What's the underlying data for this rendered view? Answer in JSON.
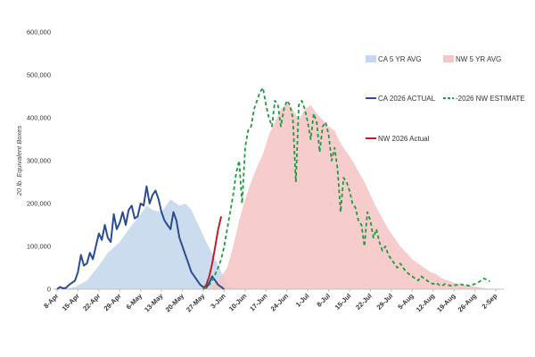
{
  "chart_data": {
    "type": "area",
    "title": "",
    "xlabel": "",
    "ylabel": "20 lb. Equivalent Boxes",
    "ylim": [
      0,
      600000
    ],
    "xlim_days": [
      0,
      147
    ],
    "y_ticks": [
      0,
      100000,
      200000,
      300000,
      400000,
      500000,
      600000
    ],
    "y_tick_labels": [
      "0",
      "100,000",
      "200,000",
      "300,000",
      "400,000",
      "500,000",
      "600,000"
    ],
    "x_tick_labels": [
      "8-Apr",
      "15-Apr",
      "22-Apr",
      "29-Apr",
      "6-May",
      "13-May",
      "20-May",
      "27-May",
      "3-Jun",
      "10-Jun",
      "17-Jun",
      "24-Jun",
      "1-Jul",
      "8-Jul",
      "15-Jul",
      "22-Jul",
      "29-Jul",
      "5-Aug",
      "12-Aug",
      "19-Aug",
      "26-Aug",
      "2-Sep"
    ],
    "x_tick_days": [
      0,
      7,
      14,
      21,
      28,
      35,
      42,
      49,
      56,
      63,
      70,
      77,
      84,
      91,
      98,
      105,
      112,
      119,
      126,
      133,
      140,
      147
    ],
    "x_units_note": "",
    "grid": false,
    "legend_position": "top-right",
    "series": [
      {
        "name": "CA 5 YR AVG",
        "kind": "area",
        "color": "#c5d8ec",
        "x": [
          2,
          6,
          10,
          14,
          17,
          21,
          24,
          28,
          30,
          32,
          35,
          38,
          41,
          43,
          45,
          48,
          50,
          53,
          55,
          57,
          59,
          62
        ],
        "y": [
          0,
          5000,
          20000,
          55000,
          85000,
          110000,
          140000,
          175000,
          195000,
          185000,
          180000,
          210000,
          195000,
          200000,
          185000,
          140000,
          110000,
          70000,
          40000,
          15000,
          5000,
          0
        ]
      },
      {
        "name": "NW 5 YR AVG",
        "kind": "area",
        "color": "#f5c6c6",
        "x": [
          50,
          54,
          57,
          59,
          61,
          63,
          65,
          67,
          69,
          71,
          73,
          75,
          77,
          79,
          81,
          83,
          85,
          87,
          89,
          91,
          93,
          95,
          97,
          99,
          101,
          103,
          105,
          107,
          109,
          111,
          113,
          115,
          117,
          119,
          121,
          123,
          125,
          127,
          129,
          131,
          133,
          135,
          137,
          139,
          141,
          143,
          145
        ],
        "y": [
          0,
          20000,
          50000,
          100000,
          160000,
          210000,
          250000,
          285000,
          315000,
          360000,
          390000,
          420000,
          435000,
          420000,
          395000,
          420000,
          430000,
          410000,
          395000,
          380000,
          370000,
          340000,
          320000,
          300000,
          275000,
          250000,
          220000,
          190000,
          165000,
          140000,
          120000,
          100000,
          85000,
          70000,
          60000,
          50000,
          40000,
          35000,
          25000,
          20000,
          15000,
          12000,
          10000,
          8000,
          5000,
          3000,
          0
        ]
      },
      {
        "name": "CA 2026  ACTUAL",
        "kind": "line",
        "color": "#2a4d8f",
        "dash": "",
        "x": [
          0,
          1,
          2,
          3,
          4,
          5,
          6,
          7,
          8,
          9,
          10,
          11,
          12,
          13,
          14,
          15,
          16,
          17,
          18,
          19,
          20,
          21,
          22,
          23,
          24,
          25,
          26,
          27,
          28,
          29,
          30,
          31,
          32,
          33,
          34,
          35,
          36,
          37,
          38,
          39,
          40,
          41,
          42,
          43,
          44,
          45,
          46,
          47,
          48,
          49,
          50,
          51,
          52,
          53,
          54,
          55,
          56
        ],
        "y": [
          0,
          5000,
          2000,
          3000,
          10000,
          15000,
          20000,
          40000,
          80000,
          55000,
          60000,
          85000,
          70000,
          100000,
          130000,
          115000,
          150000,
          120000,
          110000,
          175000,
          140000,
          155000,
          180000,
          150000,
          185000,
          195000,
          165000,
          170000,
          200000,
          195000,
          240000,
          200000,
          220000,
          230000,
          210000,
          180000,
          160000,
          150000,
          140000,
          180000,
          160000,
          120000,
          100000,
          80000,
          60000,
          40000,
          30000,
          20000,
          10000,
          5000,
          3000,
          15000,
          30000,
          20000,
          10000,
          5000,
          0
        ]
      },
      {
        "name": "NW 2026 Actual",
        "kind": "line",
        "color": "#c0202a",
        "dash": "",
        "x": [
          49,
          50,
          51,
          52,
          53,
          54,
          55
        ],
        "y": [
          0,
          10000,
          30000,
          60000,
          100000,
          140000,
          170000
        ]
      },
      {
        "name": "-2026 NW ESTIMATE",
        "kind": "line",
        "color": "#1f9a40",
        "dash": "4,3",
        "x": [
          49,
          50,
          51,
          52,
          53,
          54,
          55,
          56,
          57,
          58,
          59,
          60,
          61,
          62,
          63,
          64,
          65,
          66,
          67,
          68,
          69,
          70,
          71,
          72,
          73,
          74,
          75,
          76,
          77,
          78,
          79,
          80,
          81,
          82,
          83,
          84,
          85,
          86,
          87,
          88,
          89,
          90,
          91,
          92,
          93,
          94,
          95,
          96,
          97,
          98,
          99,
          100,
          101,
          102,
          103,
          104,
          105,
          106,
          107,
          108,
          109,
          110,
          111,
          112,
          113,
          114,
          115,
          116,
          117,
          118,
          119,
          120,
          121,
          122,
          123,
          124,
          125,
          126,
          127,
          128,
          129,
          130,
          131,
          132,
          133,
          134,
          135,
          136,
          137,
          138,
          139,
          140,
          141,
          142,
          143,
          144,
          145
        ],
        "y": [
          0,
          5000,
          10000,
          20000,
          35000,
          50000,
          70000,
          100000,
          140000,
          180000,
          220000,
          270000,
          300000,
          200000,
          330000,
          370000,
          380000,
          420000,
          440000,
          460000,
          470000,
          430000,
          400000,
          380000,
          440000,
          430000,
          380000,
          420000,
          440000,
          430000,
          400000,
          250000,
          430000,
          440000,
          420000,
          390000,
          350000,
          410000,
          390000,
          320000,
          380000,
          390000,
          360000,
          300000,
          330000,
          280000,
          180000,
          260000,
          250000,
          230000,
          200000,
          190000,
          160000,
          150000,
          100000,
          180000,
          160000,
          120000,
          140000,
          110000,
          90000,
          100000,
          80000,
          70000,
          60000,
          50000,
          60000,
          50000,
          40000,
          35000,
          30000,
          25000,
          20000,
          30000,
          25000,
          20000,
          15000,
          12000,
          15000,
          10000,
          8000,
          12000,
          10000,
          8000,
          9000,
          10000,
          12000,
          10000,
          10000,
          8000,
          10000,
          12000,
          15000,
          20000,
          25000,
          22000,
          18000
        ]
      }
    ],
    "legend": [
      {
        "label": "CA 5 YR AVG",
        "swatch": "area",
        "color": "#c5d8ec"
      },
      {
        "label": "NW 5 YR AVG",
        "swatch": "area",
        "color": "#f5c6c6"
      },
      {
        "label": "CA 2026  ACTUAL",
        "swatch": "line",
        "color": "#2a4d8f"
      },
      {
        "label": "-2026 NW ESTIMATE",
        "swatch": "dash",
        "color": "#1f9a40"
      },
      {
        "label": "NW 2026 Actual",
        "swatch": "line",
        "color": "#c0202a"
      }
    ]
  }
}
